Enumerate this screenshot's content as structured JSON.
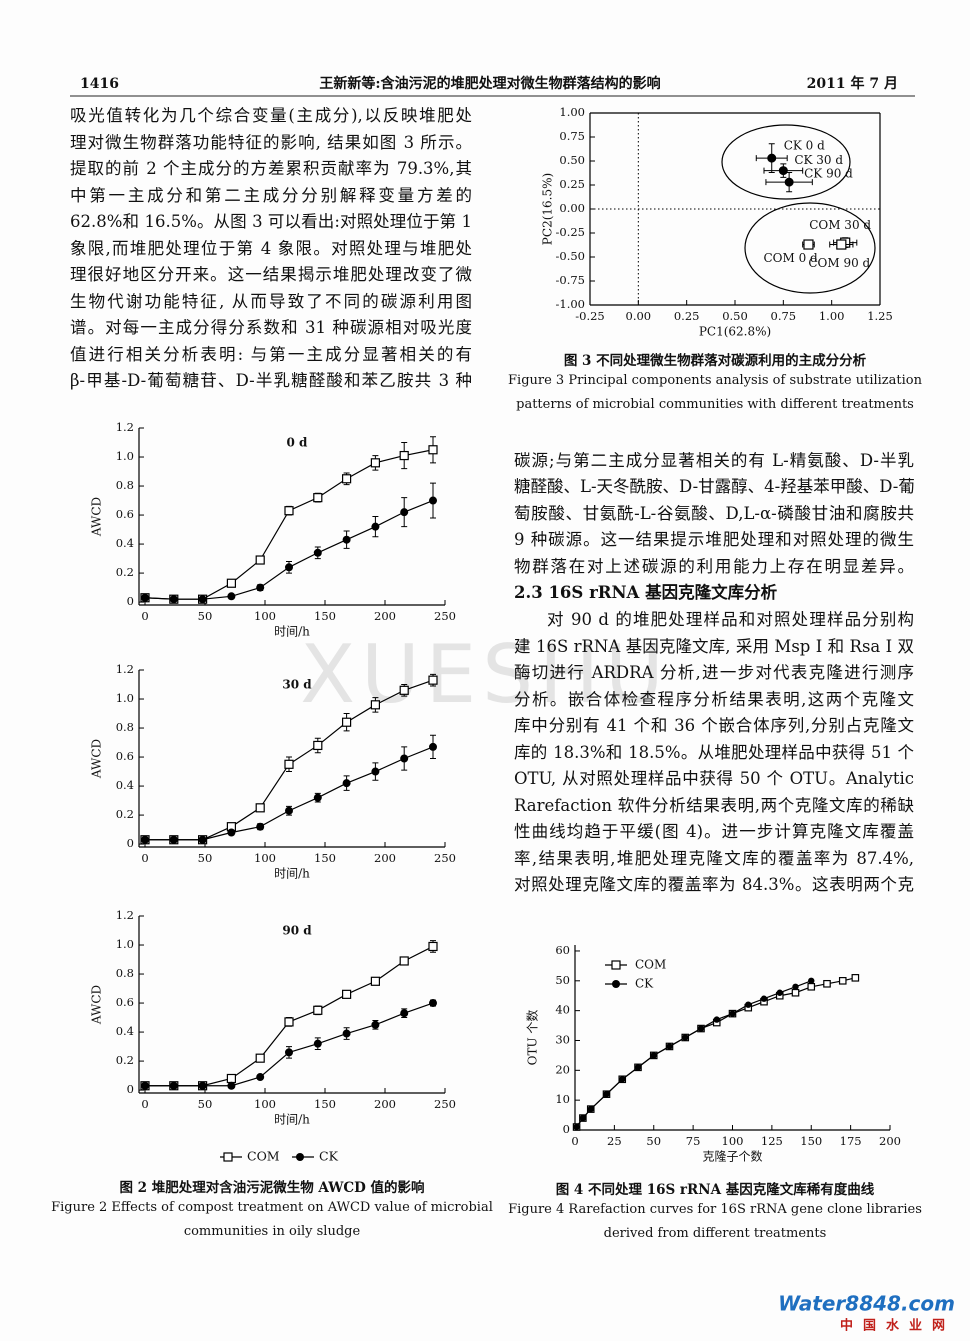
{
  "header": {
    "page_number": "1416",
    "running_title": "王新新等:含油污泥的堆肥处理对微生物群落结构的影响",
    "date": "2011 年 7 月"
  },
  "left_text": {
    "lines": [
      "吸光值转化为几个综合变量(主成分),以反映堆肥处",
      "理对微生物群落功能特征的影响, 结果如图 3 所示。",
      "提取的前 2 个主成分的方差累积贡献率为 79.3%,其",
      "中第一主成分和第二主成分分别解释变量方差的",
      "62.8%和 16.5%。从图 3 可以看出:对照处理位于第 1",
      "象限,而堆肥处理位于第 4 象限。对照处理与堆肥处",
      "理很好地区分开来。这一结果揭示堆肥处理改变了微",
      "生物代谢功能特征, 从而导致了不同的碳源利用图",
      "谱。对每一主成分得分系数和 31 种碳源相对吸光度",
      "值进行相关分析表明: 与第一主成分显著相关的有",
      "β-甲基-D-葡萄糖苷、D-半乳糖醛酸和苯乙胺共 3 种"
    ]
  },
  "right_text": {
    "lines_a": [
      "碳源;与第二主成分显著相关的有 L-精氨酸、D-半乳",
      "糖醛酸、L-天冬酰胺、D-甘露醇、4-羟基苯甲酸、D-葡",
      "萄胺酸、甘氨酰-L-谷氨酸、D,L-α-磷酸甘油和腐胺共",
      "9 种碳源。这一结果提示堆肥处理和对照处理的微生",
      "物群落在对上述碳源的利用能力上存在明显差异。"
    ],
    "heading": "2.3 16S rRNA 基因克隆文库分析",
    "lines_b": [
      "对 90 d 的堆肥处理样品和对照处理样品分别构",
      "建 16S rRNA 基因克隆文库, 采用 Msp I 和 Rsa I 双",
      "酶切进行 ARDRA 分析,进一步对代表克隆进行测序",
      "分析。嵌合体检查程序分析结果表明,这两个克隆文",
      "库中分别有 41 个和 36 个嵌合体序列,分别占克隆文",
      "库的 18.3%和 18.5%。从堆肥处理样品中获得 51 个",
      "OTU, 从对照处理样品中获得 50 个 OTU。Analytic",
      "Rarefaction 软件分析结果表明,两个克隆文库的稀缺",
      "性曲线均趋于平缓(图 4)。进一步计算克隆文库覆盖",
      "率,结果表明,堆肥处理克隆文库的覆盖率为 87.4%,",
      "对照处理克隆文库的覆盖率为 84.3%。这表明两个克"
    ]
  },
  "figure_2": {
    "legend": [
      {
        "name": "COM",
        "marker": "square-open"
      },
      {
        "name": "CK",
        "marker": "circle"
      }
    ],
    "caption_cn": "图 2 堆肥处理对含油污泥微生物 AWCD 值的影响",
    "caption_en": [
      "Figure 2 Effects of compost treatment on AWCD value of microbial",
      "communities in oily sludge"
    ]
  },
  "figure_3": {
    "caption_cn": "图 3 不同处理微生物群落对碳源利用的主成分分析",
    "caption_en": [
      "Figure 3 Principal components analysis of substrate utilization",
      "patterns of microbial communities with different treatments"
    ]
  },
  "figure_4": {
    "caption_cn": "图 4 不同处理 16S rRNA 基因克隆文库稀有度曲线",
    "caption_en": [
      "Figure 4 Rarefaction curves for 16S rRNA gene clone libraries",
      "derived from different treatments"
    ]
  },
  "watermark": "XUESHU",
  "logo": {
    "brand": "Water8848.com",
    "site": "中国水业网"
  },
  "chart_data": [
    {
      "type": "line",
      "title": "0 d",
      "xlabel": "时间/h",
      "ylabel": "AWCD",
      "x": [
        0,
        24,
        48,
        72,
        96,
        120,
        144,
        168,
        192,
        216,
        240
      ],
      "xlim": [
        -5,
        250
      ],
      "xticks": [
        0,
        50,
        100,
        150,
        200,
        250
      ],
      "ylim": [
        -0.02,
        1.2
      ],
      "yticks": [
        0,
        0.2,
        0.4,
        0.6,
        0.8,
        {
          "value": 1,
          "label": "1.0"
        },
        1.2
      ],
      "series": [
        {
          "marker": "square-open",
          "color": "#000000",
          "values": [
            0.03,
            0.02,
            0.02,
            0.13,
            0.29,
            0.63,
            0.72,
            0.85,
            0.96,
            1.01,
            1.05
          ],
          "errors": [
            0.01,
            0.01,
            0.01,
            0.02,
            0.02,
            0.03,
            0.03,
            0.04,
            0.05,
            0.09,
            0.09
          ]
        },
        {
          "marker": "circle",
          "color": "#000000",
          "values": [
            0.03,
            0.02,
            0.02,
            0.04,
            0.1,
            0.24,
            0.34,
            0.43,
            0.52,
            0.62,
            0.7
          ],
          "errors": [
            0.01,
            0.01,
            0.01,
            0.01,
            0.02,
            0.04,
            0.04,
            0.06,
            0.07,
            0.1,
            0.12
          ]
        }
      ]
    },
    {
      "type": "line",
      "title": "30 d",
      "xlabel": "时间/h",
      "ylabel": "AWCD",
      "x": [
        0,
        24,
        48,
        72,
        96,
        120,
        144,
        168,
        192,
        216,
        240
      ],
      "xlim": [
        -5,
        250
      ],
      "xticks": [
        0,
        50,
        100,
        150,
        200,
        250
      ],
      "ylim": [
        -0.02,
        1.2
      ],
      "yticks": [
        0,
        0.2,
        0.4,
        0.6,
        0.8,
        {
          "value": 1,
          "label": "1.0"
        },
        1.2
      ],
      "series": [
        {
          "marker": "square-open",
          "color": "#000000",
          "values": [
            0.03,
            0.03,
            0.03,
            0.12,
            0.25,
            0.55,
            0.68,
            0.84,
            0.96,
            1.06,
            1.13
          ],
          "errors": [
            0.01,
            0.01,
            0.01,
            0.02,
            0.02,
            0.05,
            0.05,
            0.06,
            0.05,
            0.04,
            0.04
          ]
        },
        {
          "marker": "circle",
          "color": "#000000",
          "values": [
            0.03,
            0.03,
            0.03,
            0.08,
            0.12,
            0.23,
            0.32,
            0.42,
            0.5,
            0.59,
            0.67
          ],
          "errors": [
            0.01,
            0.01,
            0.01,
            0.01,
            0.02,
            0.03,
            0.03,
            0.05,
            0.06,
            0.08,
            0.08
          ]
        }
      ]
    },
    {
      "type": "line",
      "title": "90 d",
      "xlabel": "时间/h",
      "ylabel": "AWCD",
      "x": [
        0,
        24,
        48,
        72,
        96,
        120,
        144,
        168,
        192,
        216,
        240
      ],
      "xlim": [
        -5,
        250
      ],
      "xticks": [
        0,
        50,
        100,
        150,
        200,
        250
      ],
      "ylim": [
        -0.02,
        1.2
      ],
      "yticks": [
        0,
        0.2,
        0.4,
        0.6,
        0.8,
        {
          "value": 1,
          "label": "1.0"
        },
        1.2
      ],
      "series": [
        {
          "marker": "square-open",
          "color": "#000000",
          "values": [
            0.03,
            0.03,
            0.03,
            0.08,
            0.22,
            0.47,
            0.55,
            0.66,
            0.75,
            0.89,
            0.99
          ],
          "errors": [
            0.01,
            0.01,
            0.01,
            0.01,
            0.02,
            0.03,
            0.03,
            0.02,
            0.02,
            0.02,
            0.04
          ]
        },
        {
          "marker": "circle",
          "color": "#000000",
          "values": [
            0.03,
            0.03,
            0.03,
            0.03,
            0.09,
            0.26,
            0.32,
            0.39,
            0.45,
            0.53,
            0.6
          ],
          "errors": [
            0.01,
            0.01,
            0.01,
            0.01,
            0.01,
            0.04,
            0.04,
            0.04,
            0.03,
            0.03,
            0.02
          ]
        }
      ]
    },
    {
      "type": "scatter",
      "xlabel": "PC1(62.8%)",
      "ylabel": "PC2(16.5%)",
      "xlim": [
        -0.25,
        1.25
      ],
      "ylim": [
        -1,
        1
      ],
      "xticks": [
        {
          "value": -0.25,
          "label": "-0.25"
        },
        {
          "value": 0,
          "label": "0.00"
        },
        {
          "value": 0.25,
          "label": "0.25"
        },
        {
          "value": 0.5,
          "label": "0.50"
        },
        {
          "value": 0.75,
          "label": "0.75"
        },
        {
          "value": 1,
          "label": "1.00"
        },
        {
          "value": 1.25,
          "label": "1.25"
        }
      ],
      "yticks": [
        {
          "value": -1,
          "label": "-1.00"
        },
        {
          "value": -0.75,
          "label": "-0.75"
        },
        {
          "value": -0.5,
          "label": "-0.50"
        },
        {
          "value": -0.25,
          "label": "-0.25"
        },
        {
          "value": 0,
          "label": "0.00"
        },
        {
          "value": 0.25,
          "label": "0.25"
        },
        {
          "value": 0.5,
          "label": "0.50"
        },
        {
          "value": 0.75,
          "label": "0.75"
        },
        {
          "value": 1,
          "label": "1.00"
        }
      ],
      "points": [
        {
          "label": "CK 0 d",
          "marker": "circle",
          "x": 0.69,
          "y": 0.53,
          "xerr": 0.08,
          "yerr": 0.15
        },
        {
          "label": "CK 30 d",
          "marker": "circle",
          "x": 0.75,
          "y": 0.4,
          "xerr": 0.1,
          "yerr": 0.07
        },
        {
          "label": "CK 90 d",
          "marker": "circle",
          "x": 0.78,
          "y": 0.28,
          "xerr": 0.12,
          "yerr": 0.1
        },
        {
          "label": "COM 30 d",
          "marker": "square-open",
          "x": 1.07,
          "y": -0.35,
          "xerr": 0.06,
          "yerr": 0.05
        },
        {
          "label": "COM 0 d",
          "marker": "square-open",
          "x": 0.88,
          "y": -0.37,
          "xerr": 0.03,
          "yerr": 0.03
        },
        {
          "label": "COM 90 d",
          "marker": "square-open",
          "x": 1.05,
          "y": -0.37,
          "xerr": 0.06,
          "yerr": 0.04
        }
      ]
    },
    {
      "type": "line",
      "xlabel": "克隆子个数",
      "ylabel": "OTU 个数",
      "xlim": [
        0,
        200
      ],
      "xticks": [
        0,
        25,
        50,
        75,
        100,
        125,
        150,
        175,
        200
      ],
      "ylim": [
        0,
        62
      ],
      "yticks": [
        0,
        10,
        20,
        30,
        40,
        50,
        60
      ],
      "series": [
        {
          "name": "COM",
          "marker": "square-open",
          "color": "#000000",
          "x": [
            1,
            5,
            10,
            20,
            30,
            40,
            50,
            60,
            70,
            80,
            90,
            100,
            110,
            120,
            130,
            140,
            150,
            160,
            170,
            178
          ],
          "values": [
            1,
            4,
            7,
            12,
            17,
            21,
            25,
            28,
            31,
            34,
            36,
            39,
            41,
            43,
            45,
            46,
            48,
            49,
            50,
            51
          ]
        },
        {
          "name": "CK",
          "marker": "circle",
          "color": "#000000",
          "x": [
            1,
            5,
            10,
            20,
            30,
            40,
            50,
            60,
            70,
            80,
            90,
            100,
            110,
            120,
            130,
            140,
            150
          ],
          "values": [
            1,
            4,
            7,
            12,
            17,
            21,
            25,
            28,
            31,
            34,
            37,
            39,
            42,
            44,
            46,
            48,
            50
          ]
        }
      ]
    }
  ]
}
